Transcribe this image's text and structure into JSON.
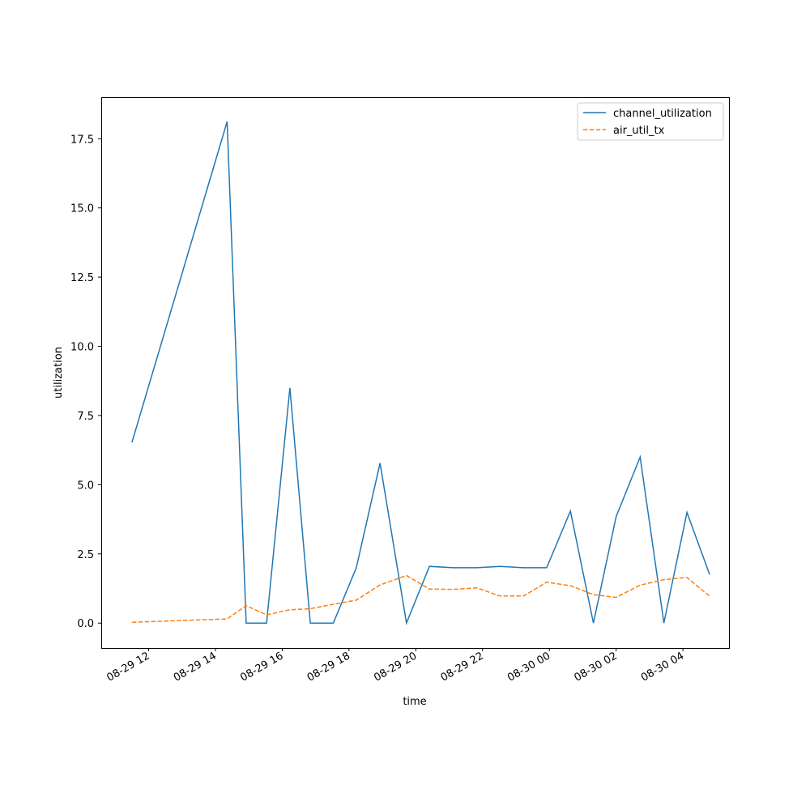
{
  "chart_data": {
    "type": "line",
    "title": "",
    "xlabel": "time",
    "ylabel": "utilization",
    "xlim_hours": [
      10.58,
      29.38
    ],
    "ylim": [
      -0.9,
      19.0
    ],
    "grid": false,
    "legend_placement": "top-right",
    "x_hours_since_0829_0000": [
      11.5,
      14.35,
      14.92,
      15.53,
      16.23,
      16.84,
      17.53,
      18.22,
      18.93,
      19.72,
      20.41,
      21.12,
      21.83,
      22.52,
      23.23,
      23.92,
      24.63,
      25.32,
      26.0,
      26.72,
      27.43,
      28.12,
      28.8
    ],
    "xticks_hours": [
      12,
      14,
      16,
      18,
      20,
      22,
      24,
      26,
      28
    ],
    "xtick_labels": [
      "08-29 12",
      "08-29 14",
      "08-29 16",
      "08-29 18",
      "08-29 20",
      "08-29 22",
      "08-30 00",
      "08-30 02",
      "08-30 04"
    ],
    "yticks": [
      0,
      2.5,
      5,
      7.5,
      10,
      12.5,
      15,
      17.5
    ],
    "ytick_labels": [
      "0.0",
      "2.5",
      "5.0",
      "7.5",
      "10.0",
      "12.5",
      "15.0",
      "17.5"
    ],
    "series": [
      {
        "name": "channel_utilization",
        "color": "#1f77b4",
        "style": "solid",
        "values": [
          6.53,
          18.12,
          0,
          0,
          8.5,
          0,
          0,
          2.0,
          5.78,
          0,
          2.05,
          2.0,
          2.0,
          2.05,
          2.0,
          2.0,
          4.05,
          0,
          3.85,
          6.0,
          0,
          4.0,
          1.75
        ]
      },
      {
        "name": "air_util_tx",
        "color": "#ff7f0e",
        "style": "dashed",
        "values": [
          0.03,
          0.15,
          0.63,
          0.3,
          0.48,
          0.52,
          0.68,
          0.83,
          1.38,
          1.72,
          1.23,
          1.22,
          1.27,
          0.98,
          0.98,
          1.48,
          1.35,
          1.03,
          0.93,
          1.37,
          1.57,
          1.65,
          0.97
        ]
      }
    ]
  }
}
